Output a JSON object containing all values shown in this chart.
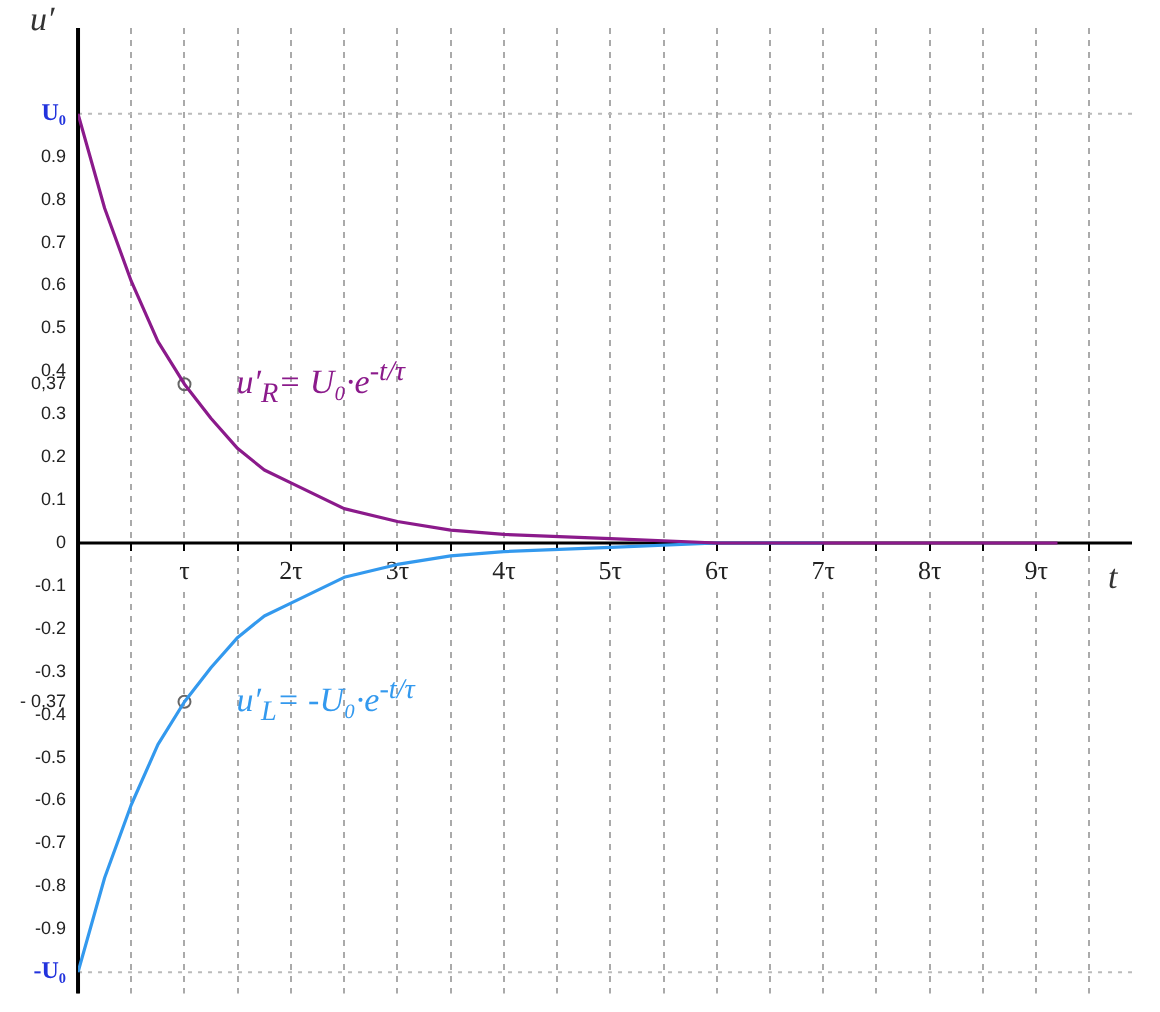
{
  "chart_data": {
    "type": "line",
    "xlabel": "t",
    "ylabel": "u′",
    "x": [
      0,
      0.25,
      0.5,
      0.75,
      1,
      1.25,
      1.5,
      1.75,
      2,
      2.5,
      3,
      3.5,
      4,
      5,
      6,
      7,
      8,
      9.2
    ],
    "series": [
      {
        "color": "#8b1a8b",
        "values": [
          1,
          0.78,
          0.61,
          0.47,
          0.37,
          0.29,
          0.22,
          0.17,
          0.14,
          0.08,
          0.05,
          0.03,
          0.02,
          0.01,
          0,
          0,
          0,
          0
        ]
      },
      {
        "color": "#3399ee",
        "values": [
          -1,
          -0.78,
          -0.61,
          -0.47,
          -0.37,
          -0.29,
          -0.22,
          -0.17,
          -0.14,
          -0.08,
          -0.05,
          -0.03,
          -0.02,
          -0.01,
          0,
          0,
          null,
          null
        ]
      },
      {
        "type": "scatter",
        "x": [
          1,
          1
        ],
        "color": "#666666",
        "marker": "circle",
        "values": [
          0.37,
          -0.37
        ]
      }
    ],
    "annotations": [
      "u′$_{R}$= U₀·e$^{-t/τ}$",
      "u′$_{L}$= -U₀·e$^{-t/τ}$"
    ],
    "ref_lines": [
      {
        "axis": "y",
        "value": 1,
        "line_style": "dotted"
      },
      {
        "axis": "y",
        "value": -1,
        "line_style": "dotted"
      }
    ],
    "xlim": [
      0,
      9.9
    ],
    "ylim": [
      -1.05,
      1.2
    ],
    "xticks": [
      {
        "value": 0,
        "label": null
      },
      {
        "value": 0.5,
        "label": null
      },
      {
        "value": 1,
        "label": "τ"
      },
      {
        "value": 1.5,
        "label": null
      },
      {
        "value": 2,
        "label": "2τ"
      },
      {
        "value": 2.5,
        "label": null
      },
      {
        "value": 3,
        "label": "3τ"
      },
      {
        "value": 3.5,
        "label": null
      },
      {
        "value": 4,
        "label": "4τ"
      },
      {
        "value": 4.5,
        "label": null
      },
      {
        "value": 5,
        "label": "5τ"
      },
      {
        "value": 5.5,
        "label": null
      },
      {
        "value": 6,
        "label": "6τ"
      },
      {
        "value": 6.5,
        "label": null
      },
      {
        "value": 7,
        "label": "7τ"
      },
      {
        "value": 7.5,
        "label": null
      },
      {
        "value": 8,
        "label": "8τ"
      },
      {
        "value": 8.5,
        "label": null
      },
      {
        "value": 9,
        "label": "9τ"
      },
      {
        "value": 9.5,
        "label": null
      }
    ],
    "yticks": [
      {
        "value": -1,
        "label": "-U₀"
      },
      -0.9,
      -0.8,
      -0.7,
      -0.6,
      -0.5,
      -0.4,
      {
        "value": -0.37,
        "label": "- 0,37"
      },
      -0.3,
      -0.2,
      -0.1,
      0,
      0.1,
      0.2,
      0.3,
      {
        "value": 0.37,
        "label": "0,37"
      },
      0.4,
      0.5,
      0.6,
      0.7,
      0.8,
      0.9,
      {
        "value": 1,
        "label": "U₀"
      }
    ],
    "grid": "x",
    "legend": false,
    "line_style": "solid",
    "marker": "none"
  }
}
